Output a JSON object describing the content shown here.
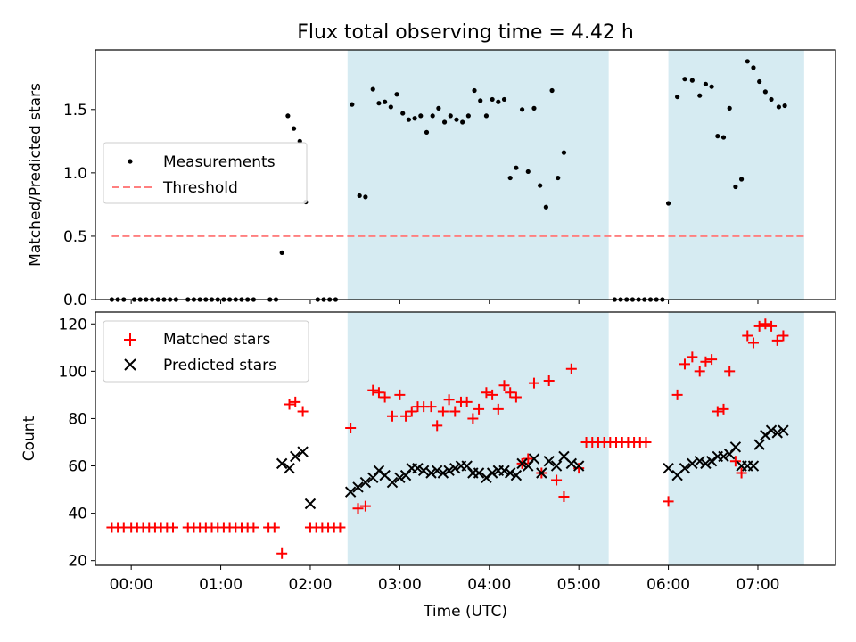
{
  "figure": {
    "title": "Flux total observing time = 4.42 h",
    "xlabel": "Time (UTC)",
    "colors": {
      "shade": "#add8e6",
      "threshold": "#ff7f7f",
      "matched": "#ff0000",
      "predicted": "#000000",
      "measure": "#000000"
    }
  },
  "chart_data": [
    {
      "type": "scatter",
      "ylabel": "Matched/Predicted stars",
      "xlim": [
        "23:36",
        "07:52"
      ],
      "ylim": [
        0,
        1.97
      ],
      "yticks": [
        "0.0",
        "0.5",
        "1.0",
        "1.5"
      ],
      "grid": false,
      "legend_position": "center-left",
      "shaded_intervals": [
        [
          "02:25",
          "05:20"
        ],
        [
          "06:00",
          "07:31"
        ]
      ],
      "threshold": {
        "name": "Threshold",
        "value": 0.5,
        "x_range": [
          "23:47",
          "07:31"
        ]
      },
      "series": [
        {
          "name": "Measurements",
          "points": [
            [
              "23:47",
              0
            ],
            [
              "23:51",
              0
            ],
            [
              "23:55",
              0
            ],
            [
              "00:02",
              0
            ],
            [
              "00:06",
              0
            ],
            [
              "00:10",
              0
            ],
            [
              "00:14",
              0
            ],
            [
              "00:18",
              0
            ],
            [
              "00:22",
              0
            ],
            [
              "00:26",
              0
            ],
            [
              "00:30",
              0
            ],
            [
              "00:38",
              0
            ],
            [
              "00:42",
              0
            ],
            [
              "00:46",
              0
            ],
            [
              "00:50",
              0
            ],
            [
              "00:54",
              0
            ],
            [
              "00:58",
              0
            ],
            [
              "01:02",
              0
            ],
            [
              "01:06",
              0
            ],
            [
              "01:10",
              0
            ],
            [
              "01:14",
              0
            ],
            [
              "01:18",
              0
            ],
            [
              "01:22",
              0
            ],
            [
              "01:33",
              0
            ],
            [
              "01:37",
              0
            ],
            [
              "01:41",
              0.37
            ],
            [
              "01:45",
              1.45
            ],
            [
              "01:49",
              1.35
            ],
            [
              "01:53",
              1.25
            ],
            [
              "01:57",
              0.77
            ],
            [
              "02:05",
              0
            ],
            [
              "02:09",
              0
            ],
            [
              "02:13",
              0
            ],
            [
              "02:17",
              0
            ],
            [
              "02:28",
              1.54
            ],
            [
              "02:33",
              0.82
            ],
            [
              "02:37",
              0.81
            ],
            [
              "02:42",
              1.66
            ],
            [
              "02:46",
              1.55
            ],
            [
              "02:50",
              1.56
            ],
            [
              "02:54",
              1.52
            ],
            [
              "02:58",
              1.62
            ],
            [
              "03:02",
              1.47
            ],
            [
              "03:06",
              1.42
            ],
            [
              "03:10",
              1.43
            ],
            [
              "03:14",
              1.45
            ],
            [
              "03:18",
              1.32
            ],
            [
              "03:22",
              1.45
            ],
            [
              "03:26",
              1.51
            ],
            [
              "03:30",
              1.4
            ],
            [
              "03:34",
              1.45
            ],
            [
              "03:38",
              1.42
            ],
            [
              "03:42",
              1.4
            ],
            [
              "03:46",
              1.45
            ],
            [
              "03:50",
              1.65
            ],
            [
              "03:54",
              1.57
            ],
            [
              "03:58",
              1.45
            ],
            [
              "04:02",
              1.58
            ],
            [
              "04:06",
              1.56
            ],
            [
              "04:10",
              1.58
            ],
            [
              "04:14",
              0.96
            ],
            [
              "04:18",
              1.04
            ],
            [
              "04:22",
              1.5
            ],
            [
              "04:26",
              1.01
            ],
            [
              "04:30",
              1.51
            ],
            [
              "04:34",
              0.9
            ],
            [
              "04:38",
              0.73
            ],
            [
              "04:42",
              1.65
            ],
            [
              "04:46",
              0.96
            ],
            [
              "04:50",
              1.16
            ],
            [
              "05:24",
              0
            ],
            [
              "05:28",
              0
            ],
            [
              "05:32",
              0
            ],
            [
              "05:36",
              0
            ],
            [
              "05:40",
              0
            ],
            [
              "05:44",
              0
            ],
            [
              "05:48",
              0
            ],
            [
              "05:52",
              0
            ],
            [
              "05:56",
              0
            ],
            [
              "06:00",
              0.76
            ],
            [
              "06:06",
              1.6
            ],
            [
              "06:11",
              1.74
            ],
            [
              "06:16",
              1.73
            ],
            [
              "06:21",
              1.61
            ],
            [
              "06:25",
              1.7
            ],
            [
              "06:29",
              1.68
            ],
            [
              "06:33",
              1.29
            ],
            [
              "06:37",
              1.28
            ],
            [
              "06:41",
              1.51
            ],
            [
              "06:45",
              0.89
            ],
            [
              "06:49",
              0.95
            ],
            [
              "06:53",
              1.88
            ],
            [
              "06:57",
              1.83
            ],
            [
              "07:01",
              1.72
            ],
            [
              "07:05",
              1.64
            ],
            [
              "07:09",
              1.58
            ],
            [
              "07:14",
              1.52
            ],
            [
              "07:18",
              1.53
            ]
          ]
        }
      ]
    },
    {
      "type": "scatter",
      "ylabel": "Count",
      "xlabel": "Time (UTC)",
      "xlim": [
        "23:36",
        "07:52"
      ],
      "ylim": [
        18,
        125
      ],
      "yticks": [
        "20",
        "40",
        "60",
        "80",
        "100",
        "120"
      ],
      "xticks": [
        "00:00",
        "01:00",
        "02:00",
        "03:00",
        "04:00",
        "05:00",
        "06:00",
        "07:00"
      ],
      "grid": false,
      "legend_position": "top-left",
      "shaded_intervals": [
        [
          "02:25",
          "05:20"
        ],
        [
          "06:00",
          "07:31"
        ]
      ],
      "series": [
        {
          "name": "Matched stars",
          "marker": "plus",
          "points": [
            [
              "23:47",
              34
            ],
            [
              "23:51",
              34
            ],
            [
              "23:55",
              34
            ],
            [
              "00:00",
              34
            ],
            [
              "00:04",
              34
            ],
            [
              "00:08",
              34
            ],
            [
              "00:12",
              34
            ],
            [
              "00:16",
              34
            ],
            [
              "00:20",
              34
            ],
            [
              "00:24",
              34
            ],
            [
              "00:28",
              34
            ],
            [
              "00:38",
              34
            ],
            [
              "00:42",
              34
            ],
            [
              "00:46",
              34
            ],
            [
              "00:50",
              34
            ],
            [
              "00:54",
              34
            ],
            [
              "00:58",
              34
            ],
            [
              "01:02",
              34
            ],
            [
              "01:06",
              34
            ],
            [
              "01:10",
              34
            ],
            [
              "01:14",
              34
            ],
            [
              "01:18",
              34
            ],
            [
              "01:22",
              34
            ],
            [
              "01:32",
              34
            ],
            [
              "01:36",
              34
            ],
            [
              "01:41",
              23
            ],
            [
              "01:46",
              86
            ],
            [
              "01:50",
              87
            ],
            [
              "01:55",
              83
            ],
            [
              "02:00",
              34
            ],
            [
              "02:04",
              34
            ],
            [
              "02:08",
              34
            ],
            [
              "02:12",
              34
            ],
            [
              "02:16",
              34
            ],
            [
              "02:20",
              34
            ],
            [
              "02:27",
              76
            ],
            [
              "02:32",
              42
            ],
            [
              "02:37",
              43
            ],
            [
              "02:42",
              92
            ],
            [
              "02:46",
              91
            ],
            [
              "02:50",
              89
            ],
            [
              "02:55",
              81
            ],
            [
              "03:00",
              90
            ],
            [
              "03:04",
              81
            ],
            [
              "03:08",
              83
            ],
            [
              "03:12",
              85
            ],
            [
              "03:16",
              85
            ],
            [
              "03:21",
              85
            ],
            [
              "03:25",
              77
            ],
            [
              "03:29",
              83
            ],
            [
              "03:33",
              88
            ],
            [
              "03:37",
              83
            ],
            [
              "03:41",
              87
            ],
            [
              "03:45",
              87
            ],
            [
              "03:49",
              80
            ],
            [
              "03:53",
              84
            ],
            [
              "03:58",
              91
            ],
            [
              "04:02",
              90
            ],
            [
              "04:06",
              84
            ],
            [
              "04:10",
              94
            ],
            [
              "04:14",
              91
            ],
            [
              "04:18",
              89
            ],
            [
              "04:22",
              61
            ],
            [
              "04:26",
              63
            ],
            [
              "04:30",
              95
            ],
            [
              "04:35",
              57
            ],
            [
              "04:40",
              96
            ],
            [
              "04:45",
              54
            ],
            [
              "04:50",
              47
            ],
            [
              "04:55",
              101
            ],
            [
              "05:00",
              59
            ],
            [
              "05:05",
              70
            ],
            [
              "05:09",
              70
            ],
            [
              "05:13",
              70
            ],
            [
              "05:17",
              70
            ],
            [
              "05:21",
              70
            ],
            [
              "05:25",
              70
            ],
            [
              "05:29",
              70
            ],
            [
              "05:33",
              70
            ],
            [
              "05:37",
              70
            ],
            [
              "05:41",
              70
            ],
            [
              "05:45",
              70
            ],
            [
              "06:00",
              45
            ],
            [
              "06:06",
              90
            ],
            [
              "06:11",
              103
            ],
            [
              "06:16",
              106
            ],
            [
              "06:21",
              100
            ],
            [
              "06:25",
              104
            ],
            [
              "06:29",
              105
            ],
            [
              "06:33",
              83
            ],
            [
              "06:37",
              84
            ],
            [
              "06:41",
              100
            ],
            [
              "06:45",
              62
            ],
            [
              "06:49",
              57
            ],
            [
              "06:53",
              115
            ],
            [
              "06:57",
              112
            ],
            [
              "07:01",
              119
            ],
            [
              "07:05",
              120
            ],
            [
              "07:09",
              119
            ],
            [
              "07:13",
              113
            ],
            [
              "07:17",
              115
            ]
          ]
        },
        {
          "name": "Predicted stars",
          "marker": "x",
          "points": [
            [
              "01:41",
              61
            ],
            [
              "01:46",
              59
            ],
            [
              "01:50",
              64
            ],
            [
              "01:55",
              66
            ],
            [
              "02:00",
              44
            ],
            [
              "02:27",
              49
            ],
            [
              "02:32",
              51
            ],
            [
              "02:37",
              53
            ],
            [
              "02:42",
              55
            ],
            [
              "02:46",
              58
            ],
            [
              "02:50",
              56
            ],
            [
              "02:55",
              53
            ],
            [
              "03:00",
              55
            ],
            [
              "03:04",
              56
            ],
            [
              "03:08",
              59
            ],
            [
              "03:12",
              59
            ],
            [
              "03:16",
              58
            ],
            [
              "03:21",
              57
            ],
            [
              "03:25",
              58
            ],
            [
              "03:29",
              57
            ],
            [
              "03:33",
              58
            ],
            [
              "03:37",
              59
            ],
            [
              "03:41",
              60
            ],
            [
              "03:45",
              60
            ],
            [
              "03:49",
              57
            ],
            [
              "03:53",
              57
            ],
            [
              "03:58",
              55
            ],
            [
              "04:02",
              57
            ],
            [
              "04:06",
              58
            ],
            [
              "04:10",
              58
            ],
            [
              "04:14",
              57
            ],
            [
              "04:18",
              56
            ],
            [
              "04:22",
              61
            ],
            [
              "04:26",
              60
            ],
            [
              "04:30",
              63
            ],
            [
              "04:35",
              57
            ],
            [
              "04:40",
              62
            ],
            [
              "04:45",
              60
            ],
            [
              "04:50",
              64
            ],
            [
              "04:55",
              61
            ],
            [
              "05:00",
              60
            ],
            [
              "06:00",
              59
            ],
            [
              "06:06",
              56
            ],
            [
              "06:11",
              59
            ],
            [
              "06:16",
              61
            ],
            [
              "06:21",
              62
            ],
            [
              "06:25",
              61
            ],
            [
              "06:29",
              62
            ],
            [
              "06:33",
              64
            ],
            [
              "06:37",
              64
            ],
            [
              "06:41",
              65
            ],
            [
              "06:45",
              68
            ],
            [
              "06:49",
              60
            ],
            [
              "06:53",
              60
            ],
            [
              "06:57",
              60
            ],
            [
              "07:01",
              69
            ],
            [
              "07:05",
              73
            ],
            [
              "07:09",
              75
            ],
            [
              "07:13",
              74
            ],
            [
              "07:17",
              75
            ]
          ]
        }
      ]
    }
  ]
}
